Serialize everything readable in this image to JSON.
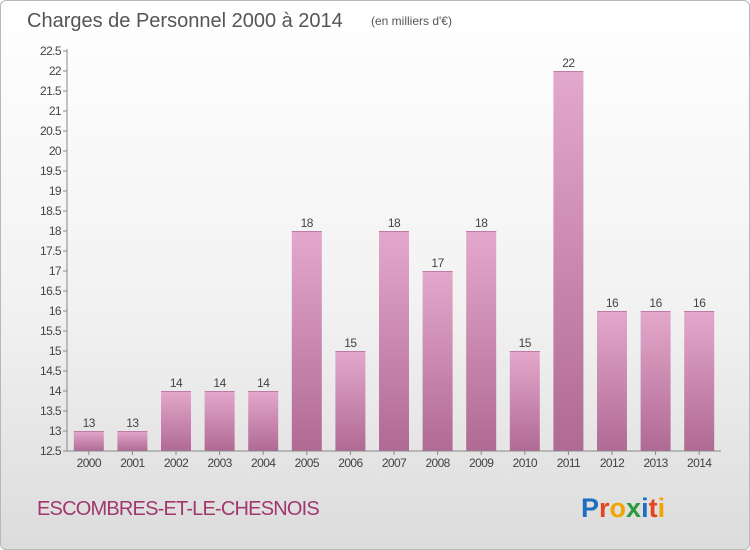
{
  "chart_data": {
    "type": "bar",
    "title": "Charges de Personnel 2000 à 2014",
    "subtitle": "(en milliers d'€)",
    "categories": [
      "2000",
      "2001",
      "2002",
      "2003",
      "2004",
      "2005",
      "2006",
      "2007",
      "2008",
      "2009",
      "2010",
      "2011",
      "2012",
      "2013",
      "2014"
    ],
    "values": [
      13,
      13,
      14,
      14,
      14,
      18,
      15,
      18,
      17,
      18,
      15,
      22,
      16,
      16,
      16
    ],
    "ylim": [
      12.5,
      22.5
    ],
    "yticks": [
      "12.5",
      "13",
      "13.5",
      "14",
      "14.5",
      "15",
      "15.5",
      "16",
      "16.5",
      "17",
      "17.5",
      "18",
      "18.5",
      "19",
      "19.5",
      "20",
      "20.5",
      "21",
      "21.5",
      "22",
      "22.5"
    ],
    "grid": false,
    "legend": "none",
    "bar_color": "#dfa0c6",
    "bar_color_dark": "#b06a94"
  },
  "commune": "ESCOMBRES-ET-LE-CHESNOIS",
  "logo": {
    "letters": [
      "P",
      "r",
      "o",
      "x",
      "i",
      "t",
      "i"
    ],
    "colors": [
      "#1f6fc0",
      "#e4451e",
      "#f0a500",
      "#2a9a3a",
      "#1f6fc0",
      "#e4451e",
      "#f0a500"
    ]
  }
}
